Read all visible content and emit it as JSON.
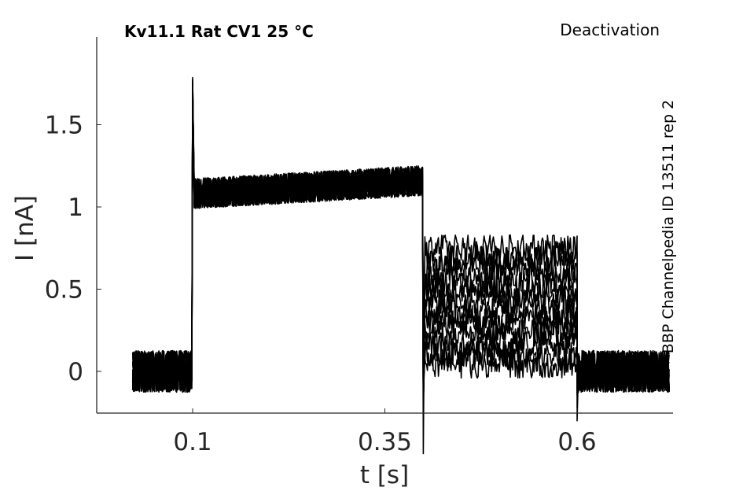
{
  "chart_data": {
    "type": "line",
    "title": "Kv11.1  Rat  CV1  25 °C",
    "protocol": "Deactivation",
    "source_note": "BBP Channelpedia ID 13511 rep 2",
    "xlabel": "t [s]",
    "ylabel": "I [nA]",
    "xlim": [
      0.0,
      0.75
    ],
    "ylim": [
      -0.26,
      2.0
    ],
    "x_ticks": [
      0.1,
      0.35,
      0.6
    ],
    "x_tick_labels": [
      "0.1",
      "0.35",
      "0.6"
    ],
    "y_ticks": [
      0,
      0.5,
      1,
      1.5
    ],
    "y_tick_labels": [
      "0",
      "0.5",
      "1",
      "1.5"
    ],
    "grid": false,
    "legend": "none",
    "line_color": "#000000",
    "trace_count": 12,
    "series_segments": [
      {
        "x_start": 0.022,
        "x_end": 0.1,
        "level": 0.0,
        "noise": 0.11
      },
      {
        "x_start": 0.1,
        "x_end": 0.4,
        "level_start": 1.08,
        "level_end": 1.16,
        "noise": 0.08
      },
      {
        "x_start": 0.4,
        "x_end": 0.6,
        "level_range": [
          0.04,
          0.75
        ],
        "noise": 0.07
      },
      {
        "x_start": 0.6,
        "x_end": 0.72,
        "level": 0.0,
        "noise": 0.11
      }
    ],
    "transients": [
      {
        "x": 0.1,
        "peak": 1.8
      },
      {
        "x": 0.4,
        "trough": -0.5
      },
      {
        "x": 0.6,
        "trough": -0.3
      }
    ]
  }
}
